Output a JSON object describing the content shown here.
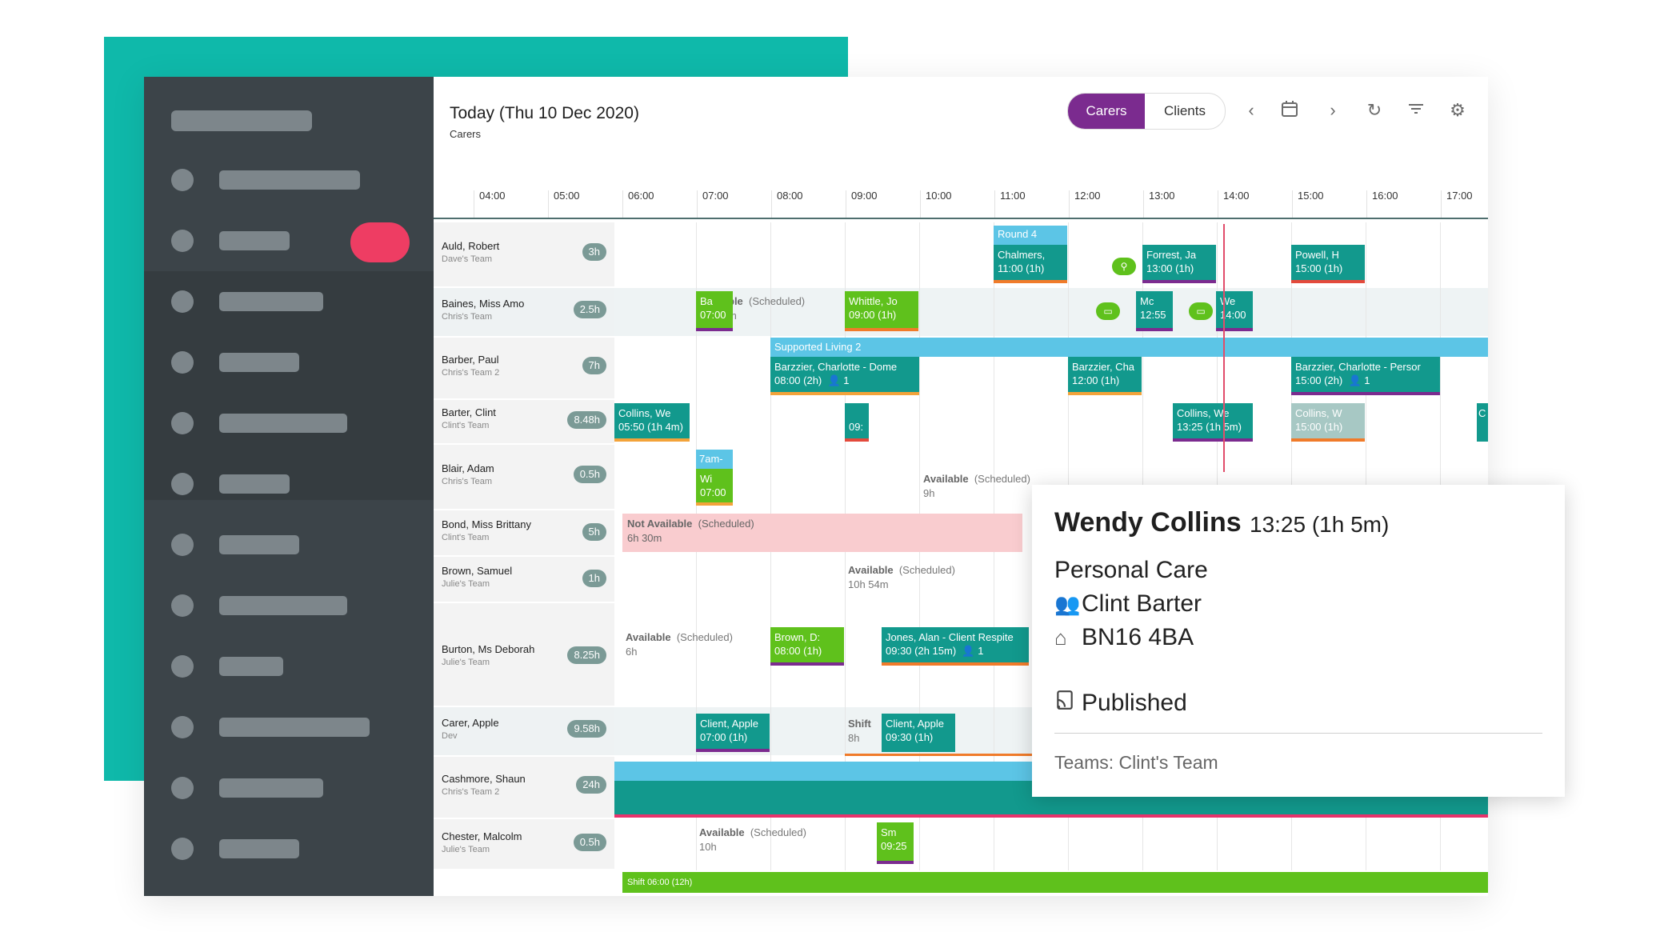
{
  "header": {
    "title": "Today (Thu 10 Dec 2020)",
    "subtitle": "Carers"
  },
  "view_toggle": {
    "active": "Carers",
    "inactive": "Clients"
  },
  "toolbar_icons": [
    "chevron-left-icon",
    "calendar-icon",
    "chevron-right-icon",
    "refresh-icon",
    "filter-icon",
    "gear-icon"
  ],
  "hours": [
    "04:00",
    "05:00",
    "06:00",
    "07:00",
    "08:00",
    "09:00",
    "10:00",
    "11:00",
    "12:00",
    "13:00",
    "14:00",
    "15:00",
    "16:00",
    "17:00"
  ],
  "rows": [
    {
      "name": "Auld, Robert",
      "team": "Dave's Team",
      "hours": "3h"
    },
    {
      "name": "Baines, Miss Amo",
      "team": "Chris's Team",
      "hours": "2.5h"
    },
    {
      "name": "Barber, Paul",
      "team": "Chris's Team 2",
      "hours": "7h"
    },
    {
      "name": "Barter, Clint",
      "team": "Clint's Team",
      "hours": "8.48h"
    },
    {
      "name": "Blair, Adam",
      "team": "Chris's Team",
      "hours": "0.5h"
    },
    {
      "name": "Bond, Miss Brittany",
      "team": "Clint's Team",
      "hours": "5h"
    },
    {
      "name": "Brown, Samuel",
      "team": "Julie's Team",
      "hours": "1h"
    },
    {
      "name": "Burton, Ms Deborah",
      "team": "Julie's Team",
      "hours": "8.25h"
    },
    {
      "name": "Carer, Apple",
      "team": "Dev",
      "hours": "9.58h"
    },
    {
      "name": "Cashmore, Shaun",
      "team": "Chris's Team 2",
      "hours": "24h"
    },
    {
      "name": "Chester, Malcolm",
      "team": "Julie's Team",
      "hours": "0.5h"
    }
  ],
  "blocks": {
    "round4": "Round 4",
    "chalmers": "Chalmers,",
    "chalmers_t": "11:00 (1h)",
    "forrest": "Forrest, Ja",
    "forrest_t": "13:00 (1h)",
    "powell": "Powell, H",
    "powell_t": "15:00 (1h)",
    "ba": "Ba",
    "ba_t": "07:00",
    "whittle": "Whittle, Jo",
    "whittle_t": "09:00 (1h)",
    "mc": "Mc",
    "mc_t": "12:55",
    "we": "We",
    "we_t": "14:00",
    "supported": "Supported Living 2",
    "barzzier1": "Barzzier, Charlotte - Dome",
    "barzzier1_t": "08:00 (2h)",
    "barzzier1_c": "1",
    "barzzier2": "Barzzier, Cha",
    "barzzier2_t": "12:00 (1h)",
    "barzzier3": "Barzzier, Charlotte - Persor",
    "barzzier3_t": "15:00 (2h)",
    "barzzier3_c": "1",
    "collins1": "Collins, We",
    "collins1_t": "05:50 (1h 4m)",
    "c09": "09:",
    "collins2": "Collins, We",
    "collins2_t": "13:25 (1h 5m)",
    "collins3": "Collins, W",
    "collins3_t": "15:00 (1h)",
    "c_edge": "C",
    "sevenam": "7am-",
    "wi": "Wi",
    "wi_t": "07:00",
    "brown": "Brown, D:",
    "brown_t": "08:00 (1h)",
    "jones": "Jones, Alan - Client Respite",
    "jones_t": "09:30 (2h 15m)",
    "jones_c": "1",
    "client1": "Client, Apple",
    "client1_t": "07:00 (1h)",
    "client2": "Client, Apple",
    "client2_t": "09:30 (1h)",
    "sm": "Sm",
    "sm_t": "09:25",
    "shift_bottom": "Shift 06:00 (12h)"
  },
  "avail": {
    "baines_avail_a": "ble",
    "baines_avail_b": "(Scheduled)",
    "baines_avail_c": "m",
    "blair_a": "Available",
    "blair_b": "(Scheduled)",
    "blair_c": "9h",
    "bond_a": "Not Available",
    "bond_b": "(Scheduled)",
    "bond_c": "6h 30m",
    "brown_a": "Available",
    "brown_b": "(Scheduled)",
    "brown_c": "10h 54m",
    "burton_a": "Available",
    "burton_b": "(Scheduled)",
    "burton_c": "6h",
    "carer_a": "Shift",
    "carer_c": "8h",
    "chester_a": "Available",
    "chester_b": "(Scheduled)",
    "chester_c": "10h"
  },
  "popup": {
    "name": "Wendy Collins",
    "time": "13:25 (1h 5m)",
    "type": "Personal Care",
    "carer": "Clint Barter",
    "postcode": "BN16 4BA",
    "status": "Published",
    "teams": "Teams: Clint's Team"
  },
  "colors": {
    "accent": "#0fb9aa",
    "primary": "#7b2b8f",
    "teal": "#12998d",
    "green": "#5fc11c",
    "now": "#e14d6b"
  }
}
